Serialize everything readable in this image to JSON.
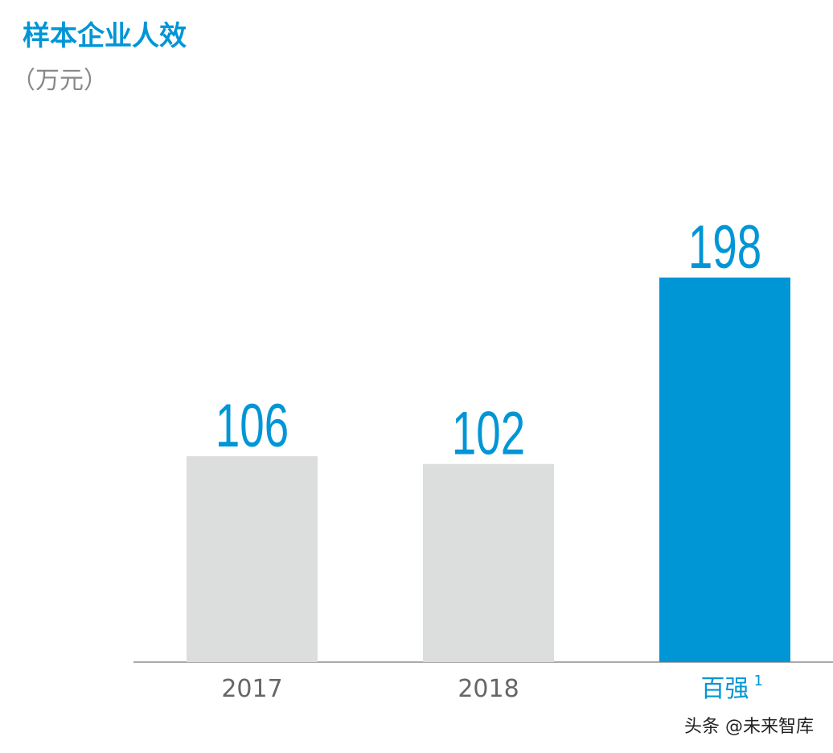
{
  "chart_data": {
    "type": "bar",
    "title": "样本企业人效",
    "subtitle": "（万元）",
    "categories": [
      "2017",
      "2018",
      "百强"
    ],
    "footnote_marker": "1",
    "values": [
      106,
      102,
      198
    ],
    "colors": [
      "#dcdddd",
      "#dcdddd",
      "#0096d6"
    ],
    "label_colors": [
      "#666666",
      "#666666",
      "#0096d6"
    ],
    "value_label_color": "#0096d6",
    "watermark": "头条 @未来智库"
  }
}
